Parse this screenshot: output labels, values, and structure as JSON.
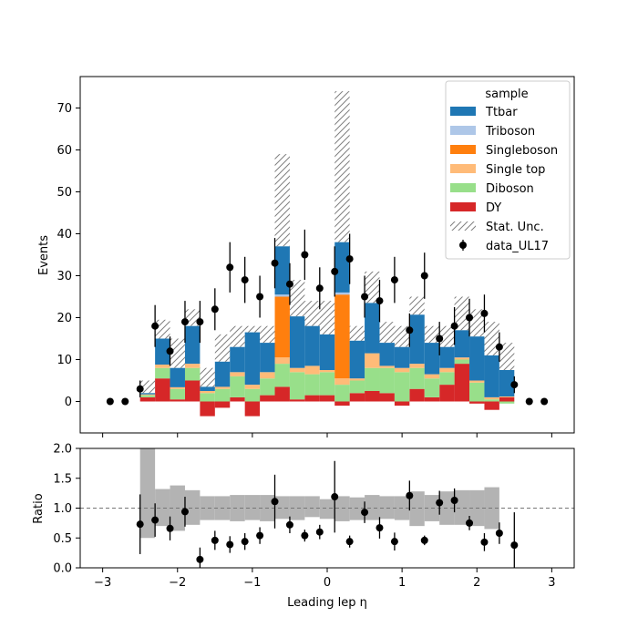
{
  "chart_data": [
    {
      "type": "bar",
      "stacked": true,
      "ylabel": "Events",
      "xlim": [
        -3.3,
        3.3
      ],
      "ylim": [
        -7.5,
        77.5
      ],
      "x_ticks": [
        -3,
        -2,
        -1,
        0,
        1,
        2,
        3
      ],
      "y_ticks": [
        0,
        10,
        20,
        30,
        40,
        50,
        60,
        70
      ],
      "legend": {
        "title": "sample",
        "placement": "top-right",
        "entries": [
          "Ttbar",
          "Triboson",
          "Singleboson",
          "Single top",
          "Diboson",
          "DY",
          "Stat. Unc.",
          "data_UL17"
        ]
      },
      "bin_edges": [
        -2.5,
        -2.3,
        -2.1,
        -1.9,
        -1.7,
        -1.5,
        -1.3,
        -1.1,
        -0.9,
        -0.7,
        -0.5,
        -0.3,
        -0.1,
        0.1,
        0.3,
        0.5,
        0.7,
        0.9,
        1.1,
        1.3,
        1.5,
        1.7,
        1.9,
        2.1,
        2.3,
        2.5
      ],
      "series": [
        {
          "name": "DY",
          "color": "#d62728",
          "values": [
            1,
            5.5,
            0.5,
            5,
            -3.5,
            -1.5,
            1,
            -3.5,
            1.5,
            3.5,
            0.5,
            1.5,
            1.5,
            -1,
            2,
            2.5,
            2,
            -1,
            3,
            1,
            4,
            9,
            -0.5,
            -2,
            1
          ]
        },
        {
          "name": "Diboson",
          "color": "#98df8a",
          "values": [
            0.5,
            2.5,
            2.5,
            3,
            2,
            3,
            5,
            3,
            4,
            5.5,
            6.5,
            5,
            5.5,
            4,
            3,
            5.5,
            6,
            7,
            5,
            4.5,
            3,
            1,
            4.5,
            0.5,
            -0.5
          ]
        },
        {
          "name": "Single top",
          "color": "#ffbb78",
          "values": [
            0.2,
            0.8,
            0.4,
            1,
            0.5,
            0.5,
            1,
            1,
            1.5,
            1.5,
            1,
            2,
            0.5,
            1.5,
            0.5,
            3.5,
            0.5,
            1,
            1,
            1,
            1,
            0.5,
            0.5,
            0.5,
            0.2
          ]
        },
        {
          "name": "Singleboson",
          "color": "#ff7f0e",
          "values": [
            0,
            0,
            0,
            0,
            0,
            0,
            0,
            0,
            0,
            14.5,
            0,
            0,
            0,
            20,
            0,
            0,
            0,
            0,
            0,
            0,
            0,
            0,
            0,
            0,
            0
          ]
        },
        {
          "name": "Triboson",
          "color": "#aec7e8",
          "values": [
            0,
            0,
            0,
            0,
            0,
            0,
            0,
            0,
            0,
            0.5,
            0,
            0,
            0,
            0.5,
            0,
            0,
            0,
            0,
            0,
            0,
            0,
            0,
            0,
            0,
            0
          ]
        },
        {
          "name": "Ttbar",
          "color": "#1f77b4",
          "values": [
            0.3,
            6.2,
            4.6,
            9,
            1,
            6,
            6,
            12.5,
            7,
            11.5,
            12.3,
            9.5,
            8.5,
            12,
            9,
            12,
            5.5,
            5,
            11.7,
            7.5,
            5,
            6.5,
            10.5,
            10,
            6.3
          ]
        }
      ],
      "unc_top": [
        5,
        19.5,
        15,
        22,
        8,
        16,
        18,
        18,
        18,
        59,
        29,
        24,
        24,
        74,
        18,
        31,
        19,
        18,
        25,
        18,
        18,
        25,
        22,
        19,
        14
      ],
      "data": {
        "name": "data_UL17",
        "x": [
          -2.9,
          -2.7,
          -2.5,
          -2.3,
          -2.1,
          -1.9,
          -1.7,
          -1.5,
          -1.3,
          -1.1,
          -0.9,
          -0.7,
          -0.5,
          -0.3,
          -0.1,
          0.1,
          0.3,
          0.5,
          0.7,
          0.9,
          1.1,
          1.3,
          1.5,
          1.7,
          1.9,
          2.1,
          2.3,
          2.5,
          2.7,
          2.9
        ],
        "y": [
          0,
          0,
          3,
          18,
          12,
          19,
          19,
          22,
          32,
          29,
          25,
          33,
          28,
          35,
          27,
          31,
          34,
          25,
          24,
          29,
          17,
          30,
          15,
          18,
          20,
          21,
          13,
          4,
          0,
          0
        ],
        "err": [
          0,
          0,
          2,
          5,
          3.5,
          5,
          5,
          5,
          6,
          5.5,
          5,
          6,
          5,
          6,
          5,
          6,
          6,
          5,
          5,
          5.5,
          4,
          5.5,
          4,
          4.5,
          4.5,
          4.5,
          3.5,
          2,
          0,
          0
        ]
      }
    },
    {
      "type": "scatter",
      "xlabel": "Leading lep η",
      "ylabel": "Ratio",
      "xlim": [
        -3.3,
        3.3
      ],
      "ylim": [
        0,
        2.0
      ],
      "x_ticks": [
        -3,
        -2,
        -1,
        0,
        1,
        2,
        3
      ],
      "y_ticks": [
        "0.0",
        "0.5",
        "1.0",
        "1.5",
        "2.0"
      ],
      "reference_line": 1.0,
      "unc_band": {
        "bin_edges": [
          -2.5,
          -2.3,
          -2.1,
          -1.9,
          -1.7,
          -1.5,
          -1.3,
          -1.1,
          -0.9,
          -0.7,
          -0.5,
          -0.3,
          -0.1,
          0.1,
          0.3,
          0.5,
          0.7,
          0.9,
          1.1,
          1.3,
          1.5,
          1.7,
          1.9,
          2.1,
          2.3
        ],
        "low": [
          0.5,
          0.7,
          0.62,
          0.72,
          0.8,
          0.8,
          0.78,
          0.8,
          0.78,
          0.82,
          0.8,
          0.85,
          0.82,
          0.78,
          0.8,
          0.8,
          0.82,
          0.8,
          0.7,
          0.78,
          0.72,
          0.72,
          0.7,
          0.65
        ],
        "high": [
          2.0,
          1.32,
          1.38,
          1.3,
          1.2,
          1.2,
          1.22,
          1.22,
          1.22,
          1.2,
          1.2,
          1.2,
          1.15,
          1.2,
          1.18,
          1.22,
          1.2,
          1.2,
          1.28,
          1.22,
          1.28,
          1.3,
          1.3,
          1.35
        ]
      },
      "points": {
        "x": [
          -2.5,
          -2.3,
          -2.1,
          -1.9,
          -1.7,
          -1.5,
          -1.3,
          -1.1,
          -0.9,
          -0.7,
          -0.5,
          -0.3,
          -0.1,
          0.1,
          0.3,
          0.5,
          0.7,
          0.9,
          1.1,
          1.3,
          1.5,
          1.7,
          1.9,
          2.1,
          2.3,
          2.5
        ],
        "y": [
          0.73,
          0.8,
          0.66,
          0.94,
          0.14,
          0.46,
          0.39,
          0.44,
          0.54,
          1.11,
          0.72,
          0.54,
          0.6,
          1.19,
          0.44,
          0.93,
          0.67,
          0.44,
          1.21,
          0.46,
          1.09,
          1.13,
          0.75,
          0.43,
          0.58,
          0.38
        ],
        "err": [
          0.5,
          0.28,
          0.2,
          0.25,
          0.2,
          0.16,
          0.14,
          0.14,
          0.14,
          0.45,
          0.14,
          0.1,
          0.12,
          0.6,
          0.1,
          0.18,
          0.18,
          0.15,
          0.25,
          0.08,
          0.2,
          0.2,
          0.12,
          0.15,
          0.18,
          0.55
        ]
      }
    }
  ]
}
